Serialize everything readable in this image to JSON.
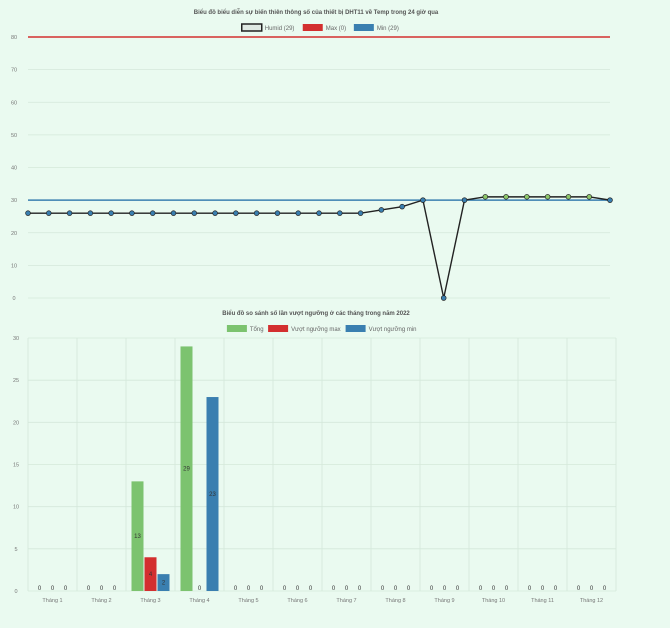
{
  "chart_data": [
    {
      "type": "line",
      "title": "Biểu đồ biểu diễn sự biến thiên thông số của thiết bị DHT11 về Temp trong 24 giờ qua",
      "legend_position": "top-center",
      "ylim": [
        0,
        80
      ],
      "yticks": [
        0,
        10,
        20,
        30,
        40,
        50,
        60,
        70,
        80
      ],
      "grid": true,
      "series": [
        {
          "name": "Humid (29)",
          "color": "#222222",
          "values": [
            26,
            26,
            26,
            26,
            26,
            26,
            26,
            26,
            26,
            26,
            26,
            26,
            26,
            26,
            26,
            26,
            26,
            27,
            28,
            30,
            0,
            30,
            31,
            31,
            31,
            31,
            31,
            31,
            30
          ]
        },
        {
          "name": "Max (0)",
          "color": "#d32f2f",
          "constant": 80
        },
        {
          "name": "Min (29)",
          "color": "#3a7fb0",
          "constant": 30
        }
      ]
    },
    {
      "type": "bar",
      "title": "Biểu đồ so sánh số lần vượt ngưỡng ở các tháng trong năm 2022",
      "legend_position": "top-center",
      "ylim": [
        0,
        30
      ],
      "yticks": [
        0,
        5,
        10,
        15,
        20,
        25,
        30
      ],
      "grid": true,
      "categories": [
        "Tháng 1",
        "Tháng 2",
        "Tháng 3",
        "Tháng 4",
        "Tháng 5",
        "Tháng 6",
        "Tháng 7",
        "Tháng 8",
        "Tháng 9",
        "Tháng 10",
        "Tháng 11",
        "Tháng 12"
      ],
      "series": [
        {
          "name": "Tổng",
          "color": "#7cc36f",
          "values": [
            0,
            0,
            13,
            29,
            0,
            0,
            0,
            0,
            0,
            0,
            0,
            0
          ]
        },
        {
          "name": "Vượt ngưỡng max",
          "color": "#d32f2f",
          "values": [
            0,
            0,
            4,
            0,
            0,
            0,
            0,
            0,
            0,
            0,
            0,
            0
          ]
        },
        {
          "name": "Vượt ngưỡng min",
          "color": "#3a7fb0",
          "values": [
            0,
            0,
            2,
            23,
            0,
            0,
            0,
            0,
            0,
            0,
            0,
            0
          ]
        }
      ]
    }
  ]
}
